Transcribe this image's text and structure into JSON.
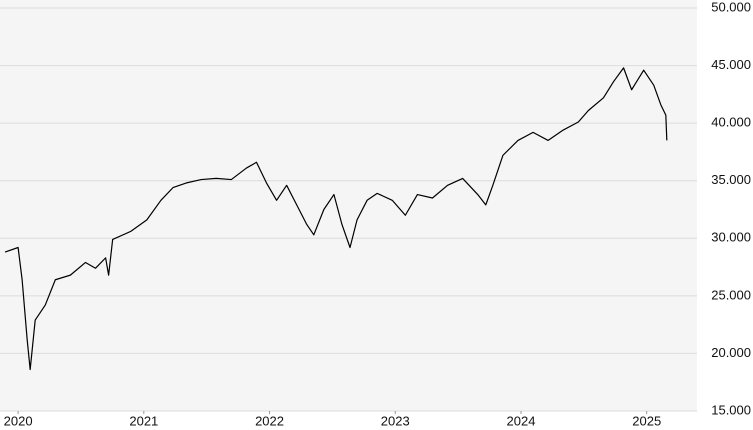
{
  "chart_data": {
    "type": "line",
    "x": [
      2019.896,
      2020,
      2020.032,
      2020.072,
      2020.096,
      2020.136,
      2020.216,
      2020.296,
      2020.416,
      2020.536,
      2020.616,
      2020.696,
      2020.72,
      2020.752,
      2020.896,
      2021.024,
      2021.136,
      2021.232,
      2021.336,
      2021.456,
      2021.576,
      2021.696,
      2021.816,
      2021.896,
      2021.976,
      2022.056,
      2022.136,
      2022.216,
      2022.296,
      2022.352,
      2022.432,
      2022.512,
      2022.576,
      2022.64,
      2022.696,
      2022.776,
      2022.856,
      2022.976,
      2023.08,
      2023.176,
      2023.296,
      2023.416,
      2023.536,
      2023.656,
      2023.72,
      2023.776,
      2023.856,
      2023.976,
      2024.096,
      2024.216,
      2024.336,
      2024.456,
      2024.536,
      2024.656,
      2024.736,
      2024.816,
      2024.88,
      2024.976,
      2025.056,
      2025.112,
      2025.152,
      2025.16
    ],
    "series": [
      {
        "color": "#000000",
        "values": [
          28800,
          29200,
          26400,
          21200,
          18600,
          22900,
          24200,
          26400,
          26800,
          27900,
          27400,
          28300,
          26800,
          29900,
          30600,
          31600,
          33300,
          34400,
          34800,
          35100,
          35200,
          35100,
          36100,
          36600,
          34800,
          33300,
          34600,
          32900,
          31200,
          30300,
          32500,
          33800,
          31200,
          29200,
          31600,
          33300,
          33900,
          33300,
          32000,
          33800,
          33500,
          34600,
          35200,
          33800,
          32900,
          34600,
          37200,
          38500,
          39200,
          38500,
          39400,
          40100,
          41100,
          42200,
          43600,
          44800,
          42900,
          44600,
          43300,
          41600,
          40700,
          38500
        ]
      }
    ],
    "xlim": [
      2019.856,
      2025.4
    ],
    "xticks": [
      2020,
      2021,
      2022,
      2023,
      2024,
      2025
    ],
    "ylim": [
      15000,
      50000
    ],
    "yticks": [
      {
        "value": 15000,
        "label": "15.000"
      },
      {
        "value": 20000,
        "label": "20.000"
      },
      {
        "value": 25000,
        "label": "25.000"
      },
      {
        "value": 30000,
        "label": "30.000"
      },
      {
        "value": 35000,
        "label": "35.000"
      },
      {
        "value": 40000,
        "label": "40.000"
      },
      {
        "value": 45000,
        "label": "45.000"
      },
      {
        "value": 50000,
        "label": "50.000"
      }
    ],
    "grid": true
  }
}
